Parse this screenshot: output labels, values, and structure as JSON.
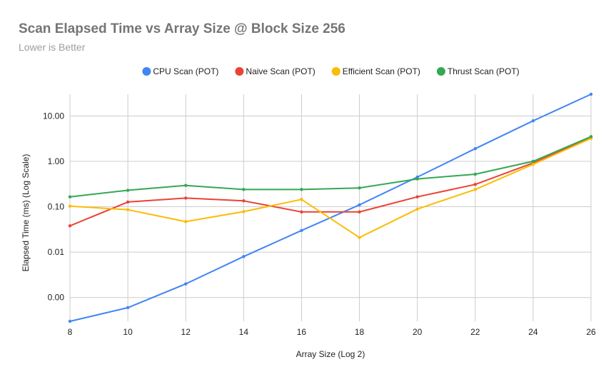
{
  "chart_data": {
    "type": "line",
    "title": "Scan Elapsed Time vs Array Size @ Block Size 256",
    "subtitle": "Lower is Better",
    "xlabel": "Array Size (Log 2)",
    "ylabel": "Elapsed Time (ms) (Log Scale)",
    "y_scale": "log",
    "x": [
      8,
      10,
      12,
      14,
      16,
      18,
      20,
      22,
      24,
      26
    ],
    "x_ticks": [
      "8",
      "10",
      "12",
      "14",
      "16",
      "18",
      "20",
      "22",
      "24",
      "26"
    ],
    "xlim": [
      8,
      26
    ],
    "ylim": [
      0.0003,
      30
    ],
    "y_ticks": [
      {
        "value": 10,
        "label": "10.00"
      },
      {
        "value": 1,
        "label": "1.00"
      },
      {
        "value": 0.1,
        "label": "0.10"
      },
      {
        "value": 0.01,
        "label": "0.01"
      },
      {
        "value": 0.001,
        "label": "0.00"
      }
    ],
    "grid": true,
    "legend_position": "top",
    "series": [
      {
        "name": "CPU Scan (POT)",
        "color": "#4285f4",
        "values": [
          0.0003,
          0.0006,
          0.002,
          0.008,
          0.03,
          0.11,
          0.45,
          1.9,
          7.8,
          30
        ]
      },
      {
        "name": "Naive Scan (POT)",
        "color": "#ea4335",
        "values": [
          0.038,
          0.127,
          0.155,
          0.135,
          0.077,
          0.077,
          0.165,
          0.31,
          0.92,
          3.3
        ]
      },
      {
        "name": "Efficient Scan (POT)",
        "color": "#fbbc04",
        "values": [
          0.103,
          0.086,
          0.047,
          0.078,
          0.145,
          0.021,
          0.089,
          0.24,
          0.86,
          3.2
        ]
      },
      {
        "name": "Thrust Scan (POT)",
        "color": "#34a853",
        "values": [
          0.165,
          0.23,
          0.295,
          0.24,
          0.24,
          0.26,
          0.41,
          0.52,
          1.0,
          3.5
        ]
      }
    ]
  }
}
